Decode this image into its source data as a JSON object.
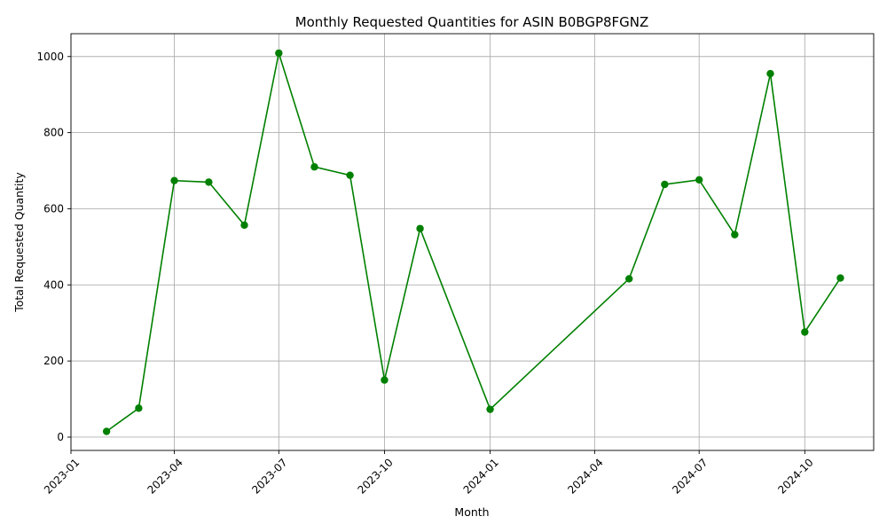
{
  "chart_data": {
    "type": "line",
    "title": "Monthly Requested Quantities for ASIN B0BGP8FGNZ",
    "xlabel": "Month",
    "ylabel": "Total Requested Quantity",
    "x_ticks": [
      "2023-01",
      "2023-04",
      "2023-07",
      "2023-10",
      "2024-01",
      "2024-04",
      "2024-07",
      "2024-10"
    ],
    "y_ticks": [
      0,
      200,
      400,
      600,
      800,
      1000
    ],
    "ylim": [
      -35,
      1060
    ],
    "xlim": [
      "2023-01-01",
      "2024-11-30"
    ],
    "grid": true,
    "series": [
      {
        "color": "#008000",
        "marker": "circle",
        "points": [
          {
            "x": "2023-02",
            "y": 15
          },
          {
            "x": "2023-03",
            "y": 76
          },
          {
            "x": "2023-04",
            "y": 674
          },
          {
            "x": "2023-05",
            "y": 670
          },
          {
            "x": "2023-06",
            "y": 557
          },
          {
            "x": "2023-07",
            "y": 1009
          },
          {
            "x": "2023-08",
            "y": 710
          },
          {
            "x": "2023-09",
            "y": 688
          },
          {
            "x": "2023-10",
            "y": 150
          },
          {
            "x": "2023-11",
            "y": 548
          },
          {
            "x": "2024-01",
            "y": 73
          },
          {
            "x": "2024-05",
            "y": 416
          },
          {
            "x": "2024-06",
            "y": 664
          },
          {
            "x": "2024-07",
            "y": 676
          },
          {
            "x": "2024-08",
            "y": 532
          },
          {
            "x": "2024-09",
            "y": 955
          },
          {
            "x": "2024-10",
            "y": 276
          },
          {
            "x": "2024-11",
            "y": 418
          }
        ]
      }
    ]
  }
}
